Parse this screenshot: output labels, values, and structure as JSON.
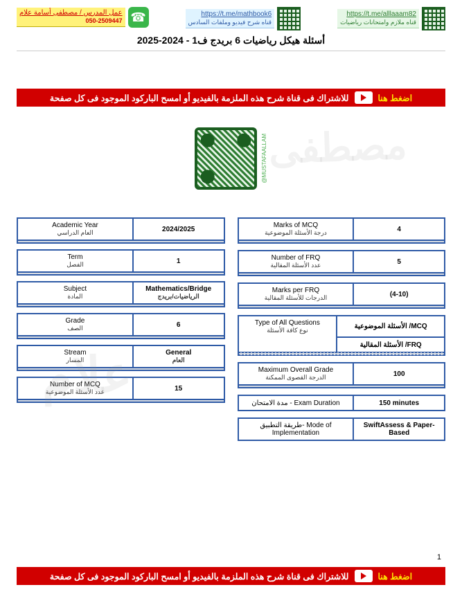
{
  "header": {
    "left": {
      "line1": "عمل المدرس / مصطفى أسامة علام",
      "line2": "050-2509447"
    },
    "mid": {
      "line1": "https://t.me/mathbook6",
      "line2": "قناه شرح فيديو وملفات السادس"
    },
    "right": {
      "line1": "https://t.me/alllaaam82",
      "line2": "قناه ملازم وامتحانات رياضيات"
    },
    "qr_side": "@MUSTAFAALLAM"
  },
  "title": "أسئلة هيكل رياضيات 6 بريدج ف1 - 2024-2025",
  "banner": {
    "label": "اضغط هنا",
    "text": "للاشتراك فى قناة شرح هذه الملزمة بالفيديو أو امسح الباركود الموجود فى كل صفحة"
  },
  "left_table": [
    {
      "en": "Academic Year",
      "ar": "العام الدراسي",
      "val": "2024/2025"
    },
    {
      "en": "Term",
      "ar": "الفصل",
      "val": "1"
    },
    {
      "en": "Subject",
      "ar": "المادة",
      "val": "Mathematics/Bridge",
      "val_ar": "الرياضيات/بريدج"
    },
    {
      "en": "Grade",
      "ar": "الصف",
      "val": "6"
    },
    {
      "en": "Stream",
      "ar": "المسار",
      "val": "General",
      "val_ar": "العام"
    },
    {
      "en": "Number of MCQ",
      "ar": "عدد الأسئلة الموضوعية",
      "val": "15"
    }
  ],
  "right_table": [
    {
      "en": "Marks of MCQ",
      "ar": "درجة الأسئلة الموضوعية",
      "val": "4"
    },
    {
      "en": "Number of FRQ",
      "ar": "عدد الأسئلة المقالية",
      "val": "5"
    },
    {
      "en": "Marks per FRQ",
      "ar": "الدرجات للأسئلة المقالية",
      "val": "(4-10)"
    },
    {
      "en": "Type of All Questions",
      "ar": "نوع كافة الأسئلة",
      "val": "الأسئلة الموضوعية /MCQ",
      "val2": "الأسئلة المقالية /FRQ",
      "dual": true,
      "dashed": true
    },
    {
      "en": "Maximum Overall Grade",
      "ar": "الدرجة القصوى الممكنة",
      "val": "100"
    },
    {
      "en": "مدة الامتحان - Exam Duration",
      "val": "150 minutes",
      "single": true
    },
    {
      "en": "طريقة التطبيق- Mode of Implementation",
      "val": "SwiftAssess & Paper-Based",
      "single": true
    }
  ],
  "page_number": "1",
  "colors": {
    "border": "#2e5aa6",
    "banner_bg": "#d10000",
    "banner_label": "#ffe600"
  }
}
